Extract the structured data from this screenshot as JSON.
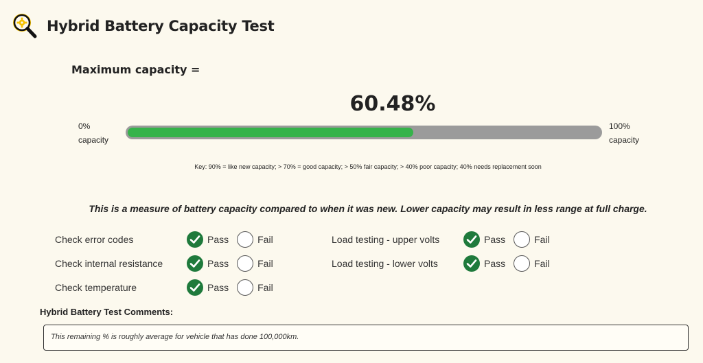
{
  "header": {
    "title": "Hybrid Battery Capacity Test",
    "logo_icon": "magnifier-gear-icon"
  },
  "capacity": {
    "label": "Maximum capacity =",
    "value_text": "60.48%",
    "value": 60.48,
    "min_label": [
      "0%",
      "capacity"
    ],
    "max_label": [
      "100%",
      "capacity"
    ],
    "key": "Key: 90% = like new capacity; > 70% = good capacity; > 50% fair capacity; > 40% poor capacity; 40% needs replacement soon"
  },
  "note": "This is a measure of battery capacity compared to when it was new. Lower capacity may result in less range at full charge.",
  "checks": [
    {
      "label": "Check error codes",
      "result": "pass"
    },
    {
      "label": "Check internal resistance",
      "result": "pass"
    },
    {
      "label": "Check temperature",
      "result": "pass"
    },
    {
      "label": "Load testing - upper volts",
      "result": "pass"
    },
    {
      "label": "Load testing - lower volts",
      "result": "pass"
    }
  ],
  "options": {
    "pass": "Pass",
    "fail": "Fail"
  },
  "comments": {
    "heading": "Hybrid Battery Test Comments:",
    "text": "This remaining % is roughly average for vehicle that has done 100,000km."
  },
  "colors": {
    "background": "#fcf9ee",
    "bar_fill": "#35b34a",
    "bar_track": "#9b9b9b",
    "pass_check": "#1f7a3c",
    "logo_yellow": "#f6c200"
  }
}
